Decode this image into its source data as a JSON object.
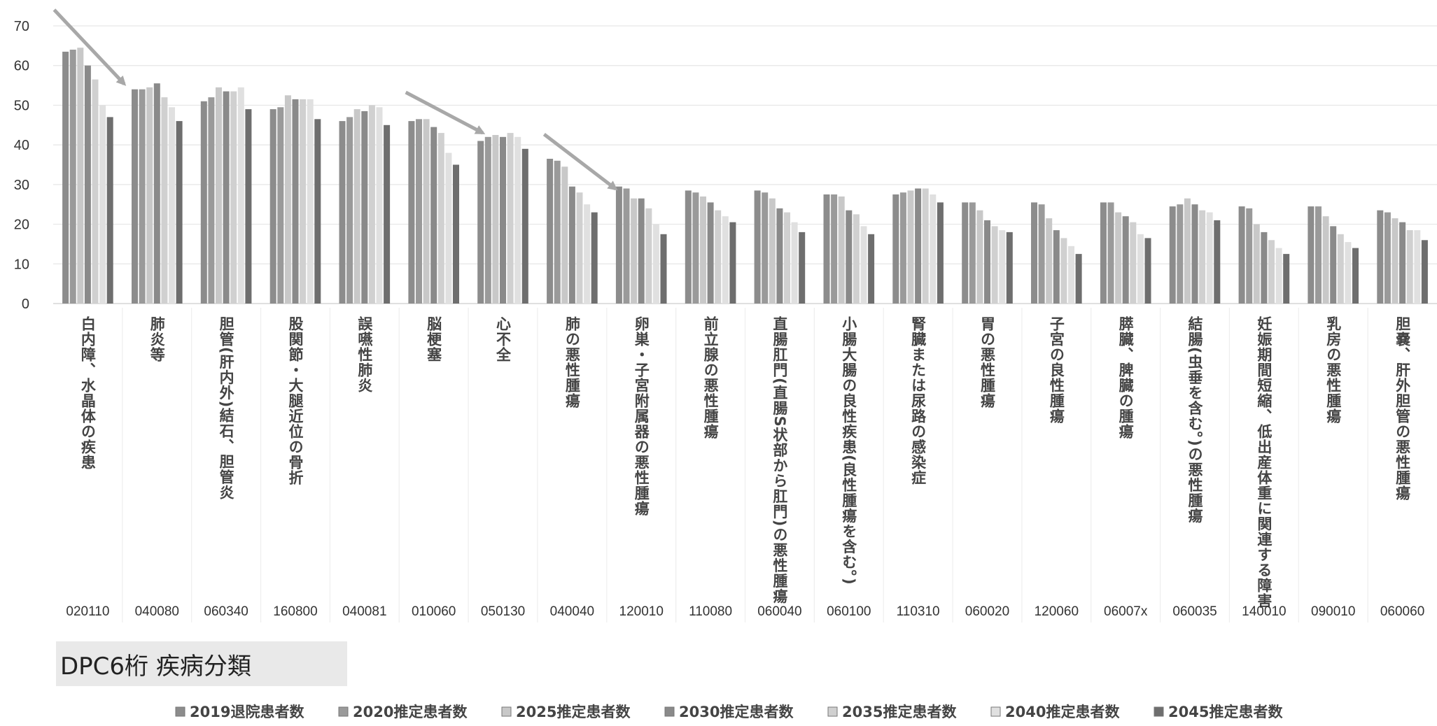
{
  "chart_data": {
    "type": "bar",
    "title": "",
    "xlabel": "DPC6桁 疾病分類",
    "ylabel": "",
    "ylim": [
      0,
      70
    ],
    "yticks": [
      0,
      10,
      20,
      30,
      40,
      50,
      60,
      70
    ],
    "grid": true,
    "legend_position": "bottom",
    "categories": [
      {
        "code": "020110",
        "name": "白内障、水晶体の疾患"
      },
      {
        "code": "040080",
        "name": "肺炎等"
      },
      {
        "code": "060340",
        "name": "胆管(肝内外)結石、胆管炎"
      },
      {
        "code": "160800",
        "name": "股関節・大腿近位の骨折"
      },
      {
        "code": "040081",
        "name": "誤嚥性肺炎"
      },
      {
        "code": "010060",
        "name": "脳梗塞"
      },
      {
        "code": "050130",
        "name": "心不全"
      },
      {
        "code": "040040",
        "name": "肺の悪性腫瘍"
      },
      {
        "code": "120010",
        "name": "卵巣・子宮附属器の悪性腫瘍"
      },
      {
        "code": "110080",
        "name": "前立腺の悪性腫瘍"
      },
      {
        "code": "060040",
        "name": "直腸肛門(直腸S状部から肛門)の悪性腫瘍"
      },
      {
        "code": "060100",
        "name": "小腸大腸の良性疾患(良性腫瘍を含む。)"
      },
      {
        "code": "110310",
        "name": "腎臓または尿路の感染症"
      },
      {
        "code": "060020",
        "name": "胃の悪性腫瘍"
      },
      {
        "code": "120060",
        "name": "子宮の良性腫瘍"
      },
      {
        "code": "06007x",
        "name": "膵臓、脾臓の腫瘍"
      },
      {
        "code": "060035",
        "name": "結腸(虫垂を含む。)の悪性腫瘍"
      },
      {
        "code": "140010",
        "name": "妊娠期間短縮、低出産体重に関連する障害"
      },
      {
        "code": "090010",
        "name": "乳房の悪性腫瘍"
      },
      {
        "code": "060060",
        "name": "胆嚢、肝外胆管の悪性腫瘍"
      }
    ],
    "series": [
      {
        "name": "2019退院患者数",
        "color": "#8c8c8c",
        "values": [
          63.5,
          54,
          51,
          49,
          46,
          46,
          41,
          36.5,
          29.5,
          28.5,
          28.5,
          27.5,
          27.5,
          25.5,
          25.5,
          25.5,
          24.5,
          24.5,
          24.5,
          23.5
        ]
      },
      {
        "name": "2020推定患者数",
        "color": "#9a9a9a",
        "values": [
          64,
          54,
          52,
          49.5,
          47,
          46.5,
          42,
          36,
          29,
          28,
          28,
          27.5,
          28,
          25.5,
          25,
          25.5,
          25,
          24,
          24.5,
          23
        ]
      },
      {
        "name": "2025推定患者数",
        "color": "#c8c8c8",
        "values": [
          64.5,
          54.5,
          54.5,
          52.5,
          49,
          46.5,
          42.5,
          34.5,
          26.5,
          27,
          26.5,
          27,
          28.5,
          23.5,
          21.5,
          23,
          26.5,
          20,
          22,
          21.5
        ]
      },
      {
        "name": "2030推定患者数",
        "color": "#8a8a8a",
        "values": [
          60,
          55.5,
          53.5,
          51.5,
          48.5,
          44.5,
          42,
          29.5,
          26.5,
          25.5,
          24,
          23.5,
          29,
          21,
          18.5,
          22,
          25,
          18,
          19.5,
          20.5
        ]
      },
      {
        "name": "2035推定患者数",
        "color": "#d0d0d0",
        "values": [
          56.5,
          52,
          53.5,
          51.5,
          50,
          43,
          43,
          28,
          24,
          23.5,
          23,
          22.5,
          29,
          19.5,
          16.5,
          20.5,
          23.5,
          16,
          17.5,
          18.5
        ]
      },
      {
        "name": "2040推定患者数",
        "color": "#e0e0e0",
        "values": [
          50,
          49.5,
          54.5,
          51.5,
          49.5,
          38,
          42,
          25,
          20,
          22,
          20.5,
          19.5,
          27.5,
          18.5,
          14.5,
          17.5,
          23,
          14,
          15.5,
          18.5
        ]
      },
      {
        "name": "2045推定患者数",
        "color": "#6e6e6e",
        "values": [
          47,
          46,
          49,
          46.5,
          45,
          35,
          39,
          23,
          17.5,
          20.5,
          18,
          17.5,
          25.5,
          18,
          12.5,
          16.5,
          21,
          12.5,
          14,
          16
        ]
      }
    ],
    "annotations": [
      {
        "type": "arrow",
        "description": "decreasing trend arrow",
        "from_category": "020110",
        "to_category": "020110"
      },
      {
        "type": "arrow",
        "description": "decreasing trend arrow",
        "from_category": "010060",
        "to_category": "010060"
      },
      {
        "type": "arrow",
        "description": "decreasing trend arrow",
        "from_category": "040040",
        "to_category": "040040"
      }
    ]
  }
}
